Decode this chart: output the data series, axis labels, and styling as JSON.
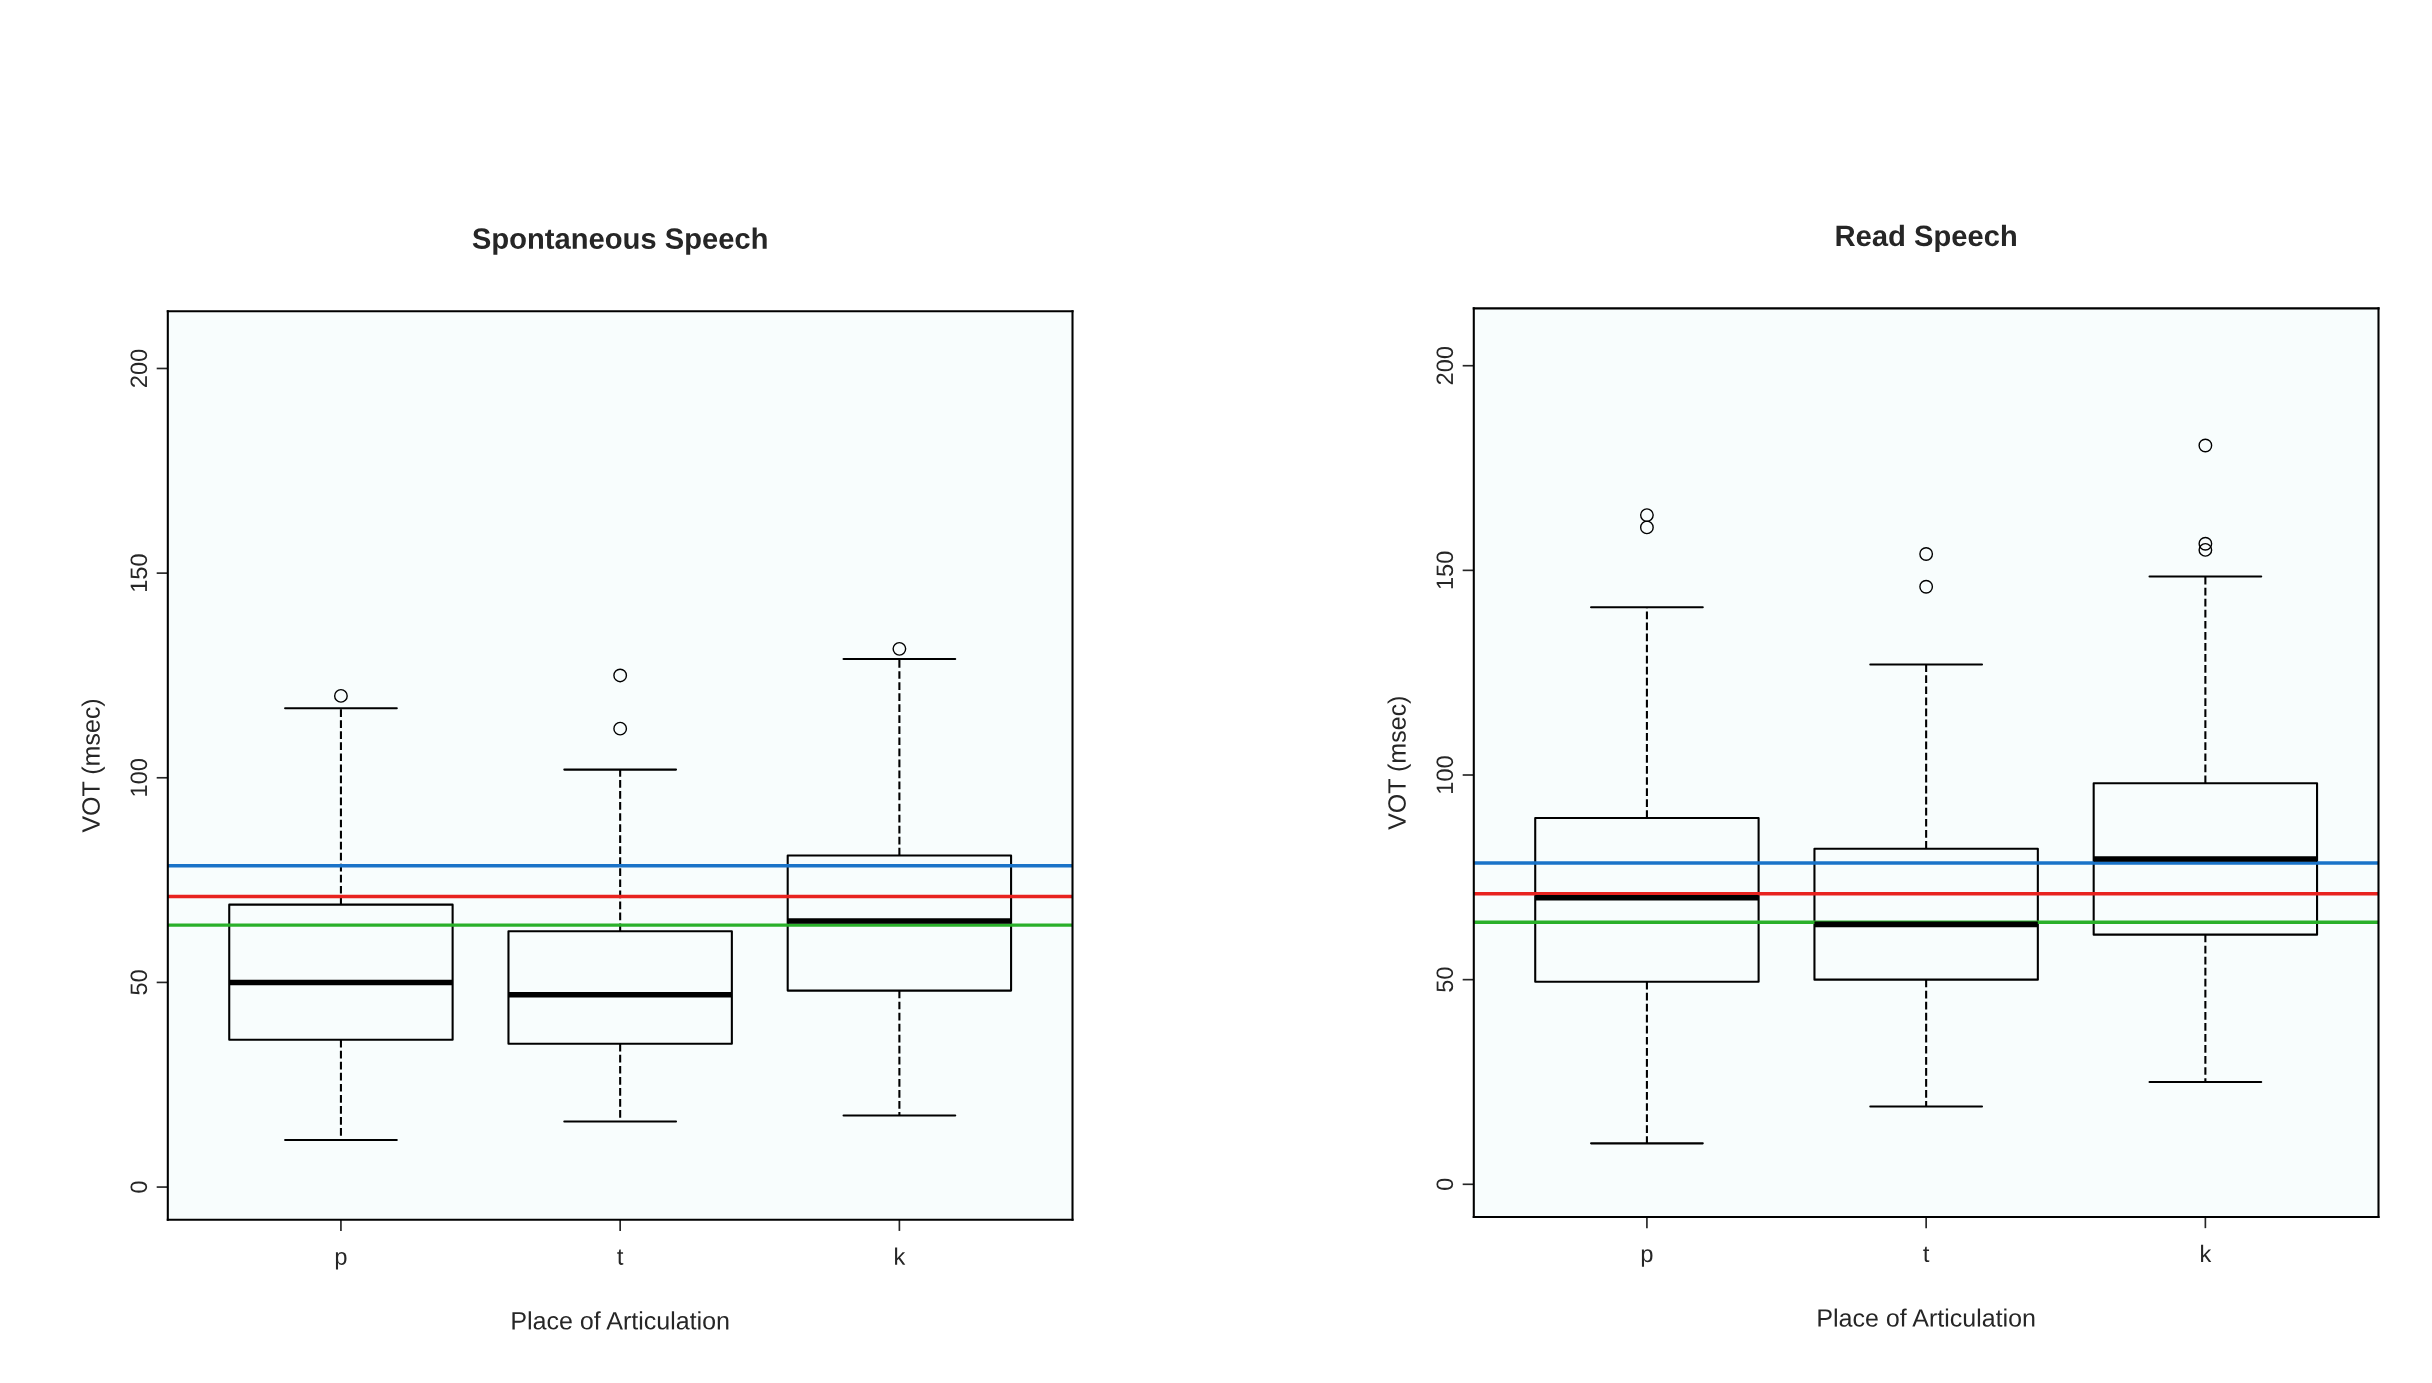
{
  "chart_data": [
    {
      "type": "box",
      "title": "Spontaneous Speech",
      "xlabel": "Place of Articulation",
      "ylabel": "VOT (msec)",
      "categories": [
        "p",
        "t",
        "k"
      ],
      "ylim": [
        -8,
        214
      ],
      "yticks": [
        0,
        50,
        100,
        150,
        200
      ],
      "grid": false,
      "boxes": [
        {
          "low": 11.5,
          "q1": 36,
          "median": 50,
          "q3": 69,
          "high": 117,
          "outliers": [
            120
          ]
        },
        {
          "low": 16,
          "q1": 35,
          "median": 47,
          "q3": 62.5,
          "high": 102,
          "outliers": [
            125,
            112
          ]
        },
        {
          "low": 17.5,
          "q1": 48,
          "median": 65,
          "q3": 81,
          "high": 129,
          "outliers": [
            131.5
          ]
        }
      ],
      "ref_lines": [
        {
          "axis": "y",
          "value": 78.5,
          "color": "#1a73c8"
        },
        {
          "axis": "y",
          "value": 71,
          "color": "#e8231f"
        },
        {
          "axis": "y",
          "value": 64,
          "color": "#2ab02a"
        }
      ]
    },
    {
      "type": "box",
      "title": "Read Speech",
      "xlabel": "Place of Articulation",
      "ylabel": "VOT (msec)",
      "categories": [
        "p",
        "t",
        "k"
      ],
      "ylim": [
        -8,
        214
      ],
      "yticks": [
        0,
        50,
        100,
        150,
        200
      ],
      "grid": false,
      "boxes": [
        {
          "low": 10,
          "q1": 49.5,
          "median": 70,
          "q3": 89.5,
          "high": 141,
          "outliers": [
            163.5,
            160.5
          ]
        },
        {
          "low": 19,
          "q1": 50,
          "median": 63.5,
          "q3": 82,
          "high": 127,
          "outliers": [
            154,
            146
          ]
        },
        {
          "low": 25,
          "q1": 61,
          "median": 79.5,
          "q3": 98,
          "high": 148.5,
          "outliers": [
            180.5,
            156.5,
            155
          ]
        }
      ],
      "ref_lines": [
        {
          "axis": "y",
          "value": 78.5,
          "color": "#1a73c8"
        },
        {
          "axis": "y",
          "value": 71,
          "color": "#e8231f"
        },
        {
          "axis": "y",
          "value": 64,
          "color": "#2ab02a"
        }
      ]
    }
  ]
}
